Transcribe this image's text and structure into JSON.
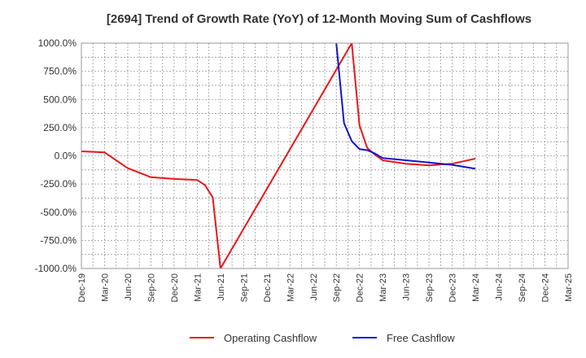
{
  "chart_data": {
    "type": "line",
    "title": "[2694]  Trend of Growth Rate (YoY) of 12-Month Moving Sum of Cashflows",
    "xlabel": "",
    "ylabel": "",
    "ylim": [
      -1000,
      1000
    ],
    "y_ticks": [
      1000,
      750,
      500,
      250,
      0,
      -250,
      -500,
      -750,
      -1000
    ],
    "y_tick_labels": [
      "1000.0%",
      "750.0%",
      "500.0%",
      "250.0%",
      "0.0%",
      "-250.0%",
      "-500.0%",
      "-750.0%",
      "-1000.0%"
    ],
    "x_tick_labels": [
      "Dec-19",
      "Mar-20",
      "Jun-20",
      "Sep-20",
      "Dec-20",
      "Mar-21",
      "Jun-21",
      "Sep-21",
      "Dec-21",
      "Mar-22",
      "Jun-22",
      "Sep-22",
      "Dec-22",
      "Mar-23",
      "Jun-23",
      "Sep-23",
      "Dec-23",
      "Mar-24",
      "Jun-24",
      "Sep-24",
      "Dec-24",
      "Mar-25"
    ],
    "x_range": [
      "Dec-19",
      "Mar-25"
    ],
    "grid": true,
    "legend_position": "bottom",
    "series": [
      {
        "name": "Operating Cashflow",
        "color": "#e8171b",
        "points": [
          [
            "Dec-19",
            40
          ],
          [
            "Mar-20",
            30
          ],
          [
            "Jun-20",
            -110
          ],
          [
            "Sep-20",
            -190
          ],
          [
            "Dec-20",
            -205
          ],
          [
            "Mar-21",
            -215
          ],
          [
            "Apr-21",
            -260
          ],
          [
            "May-21",
            -370
          ],
          [
            "Jun-21",
            -1000
          ],
          [
            "Nov-22",
            1000
          ],
          [
            "Dec-22",
            270
          ],
          [
            "Jan-23",
            70
          ],
          [
            "Feb-23",
            10
          ],
          [
            "Mar-23",
            -40
          ],
          [
            "Jun-23",
            -70
          ],
          [
            "Sep-23",
            -85
          ],
          [
            "Dec-23",
            -70
          ],
          [
            "Mar-24",
            -25
          ]
        ]
      },
      {
        "name": "Free Cashflow",
        "color": "#1414cc",
        "points": [
          [
            "Sep-22",
            1000
          ],
          [
            "Oct-22",
            290
          ],
          [
            "Nov-22",
            130
          ],
          [
            "Dec-22",
            60
          ],
          [
            "Jan-23",
            50
          ],
          [
            "Feb-23",
            20
          ],
          [
            "Mar-23",
            -20
          ],
          [
            "Jun-23",
            -40
          ],
          [
            "Sep-23",
            -60
          ],
          [
            "Dec-23",
            -80
          ],
          [
            "Mar-24",
            -115
          ]
        ]
      }
    ]
  }
}
